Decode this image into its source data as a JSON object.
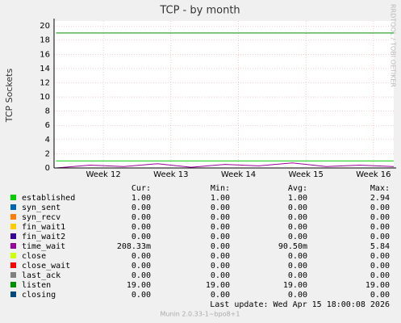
{
  "chart_data": {
    "type": "line",
    "title": "TCP - by month",
    "y_label": "TCP Sockets",
    "side_text": "RRDTOOL / TOBI OETIKER",
    "x": [
      11.3,
      11.8,
      12.3,
      12.8,
      13.3,
      13.8,
      14.3,
      14.8,
      15.3,
      15.8,
      16.3
    ],
    "xlim": [
      11.27,
      16.3
    ],
    "xticks": [
      {
        "value": 12,
        "label": "Week 12"
      },
      {
        "value": 13,
        "label": "Week 13"
      },
      {
        "value": 14,
        "label": "Week 14"
      },
      {
        "value": 15,
        "label": "Week 15"
      },
      {
        "value": 16,
        "label": "Week 16"
      }
    ],
    "ylim": [
      0,
      20.7
    ],
    "yticks": [
      0,
      2,
      4,
      6,
      8,
      10,
      12,
      14,
      16,
      18,
      20
    ],
    "grid": true,
    "legend_headers": [
      "Cur:",
      "Min:",
      "Avg:",
      "Max:"
    ],
    "series": [
      {
        "name": "established",
        "color": "#00cc00",
        "values": [
          1,
          1,
          1,
          1,
          1,
          1,
          1,
          1,
          1,
          1,
          1
        ],
        "cur": "1.00",
        "min": "1.00",
        "avg": "1.00",
        "max": "2.94"
      },
      {
        "name": "syn_sent",
        "color": "#0066b3",
        "values": [
          0,
          0,
          0,
          0,
          0,
          0,
          0,
          0,
          0,
          0,
          0
        ],
        "cur": "0.00",
        "min": "0.00",
        "avg": "0.00",
        "max": "0.00"
      },
      {
        "name": "syn_recv",
        "color": "#ff8000",
        "values": [
          0,
          0,
          0,
          0,
          0,
          0,
          0,
          0,
          0,
          0,
          0
        ],
        "cur": "0.00",
        "min": "0.00",
        "avg": "0.00",
        "max": "0.00"
      },
      {
        "name": "fin_wait1",
        "color": "#ffcc00",
        "values": [
          0,
          0,
          0,
          0,
          0,
          0,
          0,
          0,
          0,
          0,
          0
        ],
        "cur": "0.00",
        "min": "0.00",
        "avg": "0.00",
        "max": "0.00"
      },
      {
        "name": "fin_wait2",
        "color": "#330099",
        "values": [
          0,
          0,
          0,
          0,
          0,
          0,
          0,
          0,
          0,
          0,
          0
        ],
        "cur": "0.00",
        "min": "0.00",
        "avg": "0.00",
        "max": "0.00"
      },
      {
        "name": "time_wait",
        "color": "#990099",
        "values": [
          0,
          0.4,
          0.2,
          0.6,
          0.1,
          0.5,
          0.3,
          0.7,
          0.2,
          0.4,
          0.2
        ],
        "cur": "208.33m",
        "min": "0.00",
        "avg": "90.50m",
        "max": "5.84"
      },
      {
        "name": "close",
        "color": "#ccff00",
        "values": [
          0,
          0,
          0,
          0,
          0,
          0,
          0,
          0,
          0,
          0,
          0
        ],
        "cur": "0.00",
        "min": "0.00",
        "avg": "0.00",
        "max": "0.00"
      },
      {
        "name": "close_wait",
        "color": "#ff0000",
        "values": [
          0,
          0,
          0,
          0,
          0,
          0,
          0,
          0,
          0,
          0,
          0
        ],
        "cur": "0.00",
        "min": "0.00",
        "avg": "0.00",
        "max": "0.00"
      },
      {
        "name": "last_ack",
        "color": "#808080",
        "values": [
          0,
          0,
          0,
          0,
          0,
          0,
          0,
          0,
          0,
          0,
          0
        ],
        "cur": "0.00",
        "min": "0.00",
        "avg": "0.00",
        "max": "0.00"
      },
      {
        "name": "listen",
        "color": "#008f00",
        "values": [
          19,
          19,
          19,
          19,
          19,
          19,
          19,
          19,
          19,
          19,
          19
        ],
        "cur": "19.00",
        "min": "19.00",
        "avg": "19.00",
        "max": "19.00"
      },
      {
        "name": "closing",
        "color": "#00487d",
        "values": [
          0,
          0,
          0,
          0,
          0,
          0,
          0,
          0,
          0,
          0,
          0
        ],
        "cur": "0.00",
        "min": "0.00",
        "avg": "0.00",
        "max": "0.00"
      }
    ],
    "last_update": "Last update:  Wed Apr 15 18:00:08 2026",
    "footer": "Munin 2.0.33-1~bpo8+1"
  }
}
